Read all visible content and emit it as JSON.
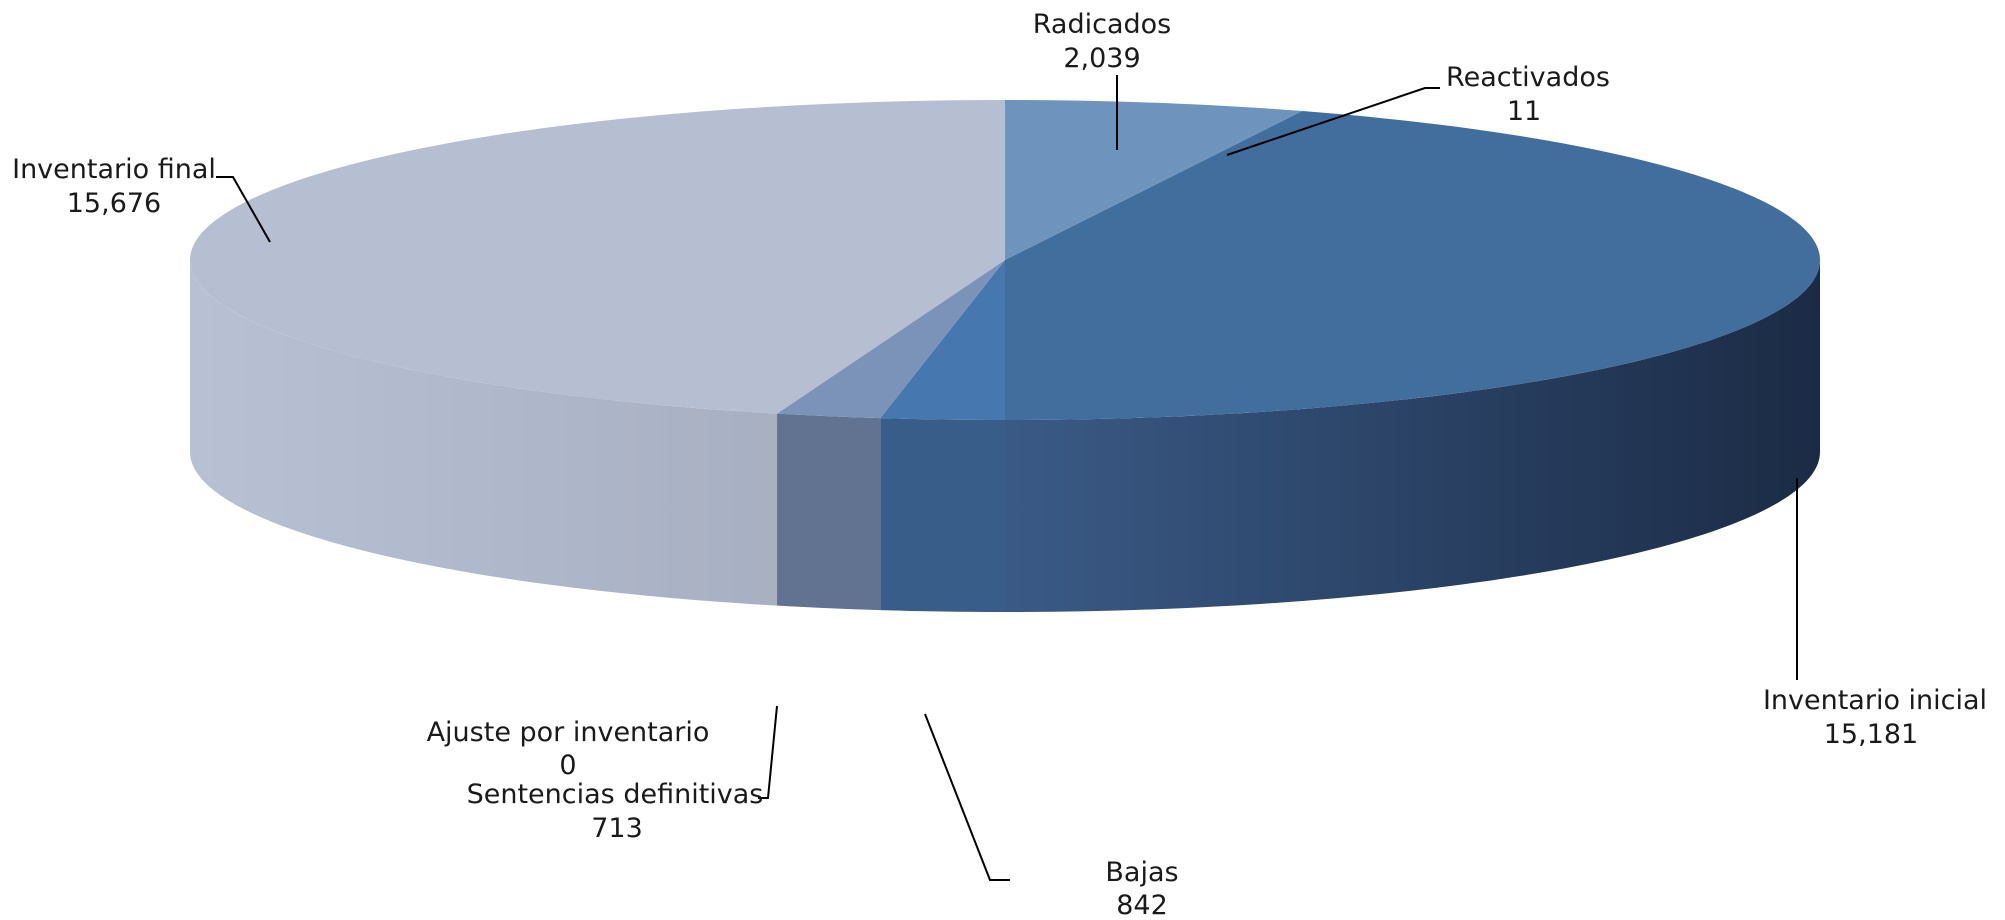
{
  "chart_data": {
    "type": "pie",
    "title": "",
    "legend": "none",
    "slices": [
      {
        "label": "Radicados",
        "value_label": "2,039",
        "value": 2039,
        "color": "#6E93BC"
      },
      {
        "label": "Reactivados",
        "value_label": "11",
        "value": 11,
        "color": "#5B82B0"
      },
      {
        "label": "Inventario inicial",
        "value_label": "15,181",
        "value": 15181,
        "color": "#426E9D"
      },
      {
        "label": "Bajas",
        "value_label": "842",
        "value": 842,
        "color": "#4677AE"
      },
      {
        "label": "Sentencias definitivas",
        "value_label": "713",
        "value": 713,
        "color": "#7C93B9"
      },
      {
        "label": "Ajuste por inventario",
        "value_label": "0",
        "value": 0,
        "color": "#8BA0C2"
      },
      {
        "label": "Inventario final",
        "value_label": "15,676",
        "value": 15676,
        "color": "#B6BFD1"
      }
    ]
  }
}
